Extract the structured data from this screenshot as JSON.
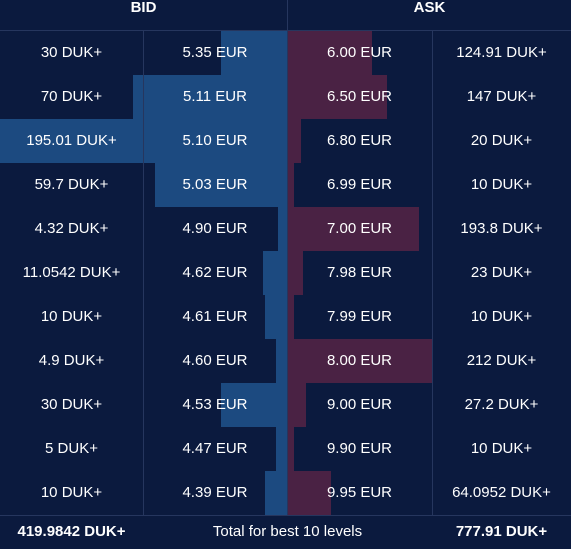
{
  "header": {
    "bid_label": "BID",
    "ask_label": "ASK"
  },
  "colors": {
    "background": "#0b1a3e",
    "bid_bar": "#1c4a80",
    "ask_bar": "#4a2244",
    "grid": "#26365e",
    "text": "#ffffff"
  },
  "bids": [
    {
      "qty": "30 DUK+",
      "price": "5.35 EUR",
      "depth": 0.23
    },
    {
      "qty": "70 DUK+",
      "price": "5.11 EUR",
      "depth": 0.535
    },
    {
      "qty": "195.01 DUK+",
      "price": "5.10 EUR",
      "depth": 1.0
    },
    {
      "qty": "59.7 DUK+",
      "price": "5.03 EUR",
      "depth": 0.46
    },
    {
      "qty": "4.32 DUK+",
      "price": "4.90 EUR",
      "depth": 0.033
    },
    {
      "qty": "11.0542 DUK+",
      "price": "4.62 EUR",
      "depth": 0.085
    },
    {
      "qty": "10 DUK+",
      "price": "4.61 EUR",
      "depth": 0.077
    },
    {
      "qty": "4.9 DUK+",
      "price": "4.60 EUR",
      "depth": 0.038
    },
    {
      "qty": "30 DUK+",
      "price": "4.53 EUR",
      "depth": 0.23
    },
    {
      "qty": "5 DUK+",
      "price": "4.47 EUR",
      "depth": 0.038
    },
    {
      "qty": "10 DUK+",
      "price": "4.39 EUR",
      "depth": 0.077
    }
  ],
  "asks": [
    {
      "price": "6.00 EUR",
      "qty": "124.91 DUK+",
      "depth": 0.588
    },
    {
      "price": "6.50 EUR",
      "qty": "147 DUK+",
      "depth": 0.692
    },
    {
      "price": "6.80 EUR",
      "qty": "20 DUK+",
      "depth": 0.094
    },
    {
      "price": "6.99 EUR",
      "qty": "10 DUK+",
      "depth": 0.047
    },
    {
      "price": "7.00 EUR",
      "qty": "193.8 DUK+",
      "depth": 0.912
    },
    {
      "price": "7.98 EUR",
      "qty": "23 DUK+",
      "depth": 0.108
    },
    {
      "price": "7.99 EUR",
      "qty": "10 DUK+",
      "depth": 0.047
    },
    {
      "price": "8.00 EUR",
      "qty": "212 DUK+",
      "depth": 1.0
    },
    {
      "price": "9.00 EUR",
      "qty": "27.2 DUK+",
      "depth": 0.128
    },
    {
      "price": "9.90 EUR",
      "qty": "10 DUK+",
      "depth": 0.047
    },
    {
      "price": "9.95 EUR",
      "qty": "64.0952 DUK+",
      "depth": 0.302
    }
  ],
  "footer": {
    "bid_total": "419.9842 DUK+",
    "label": "Total for best 10 levels",
    "ask_total": "777.91 DUK+"
  }
}
